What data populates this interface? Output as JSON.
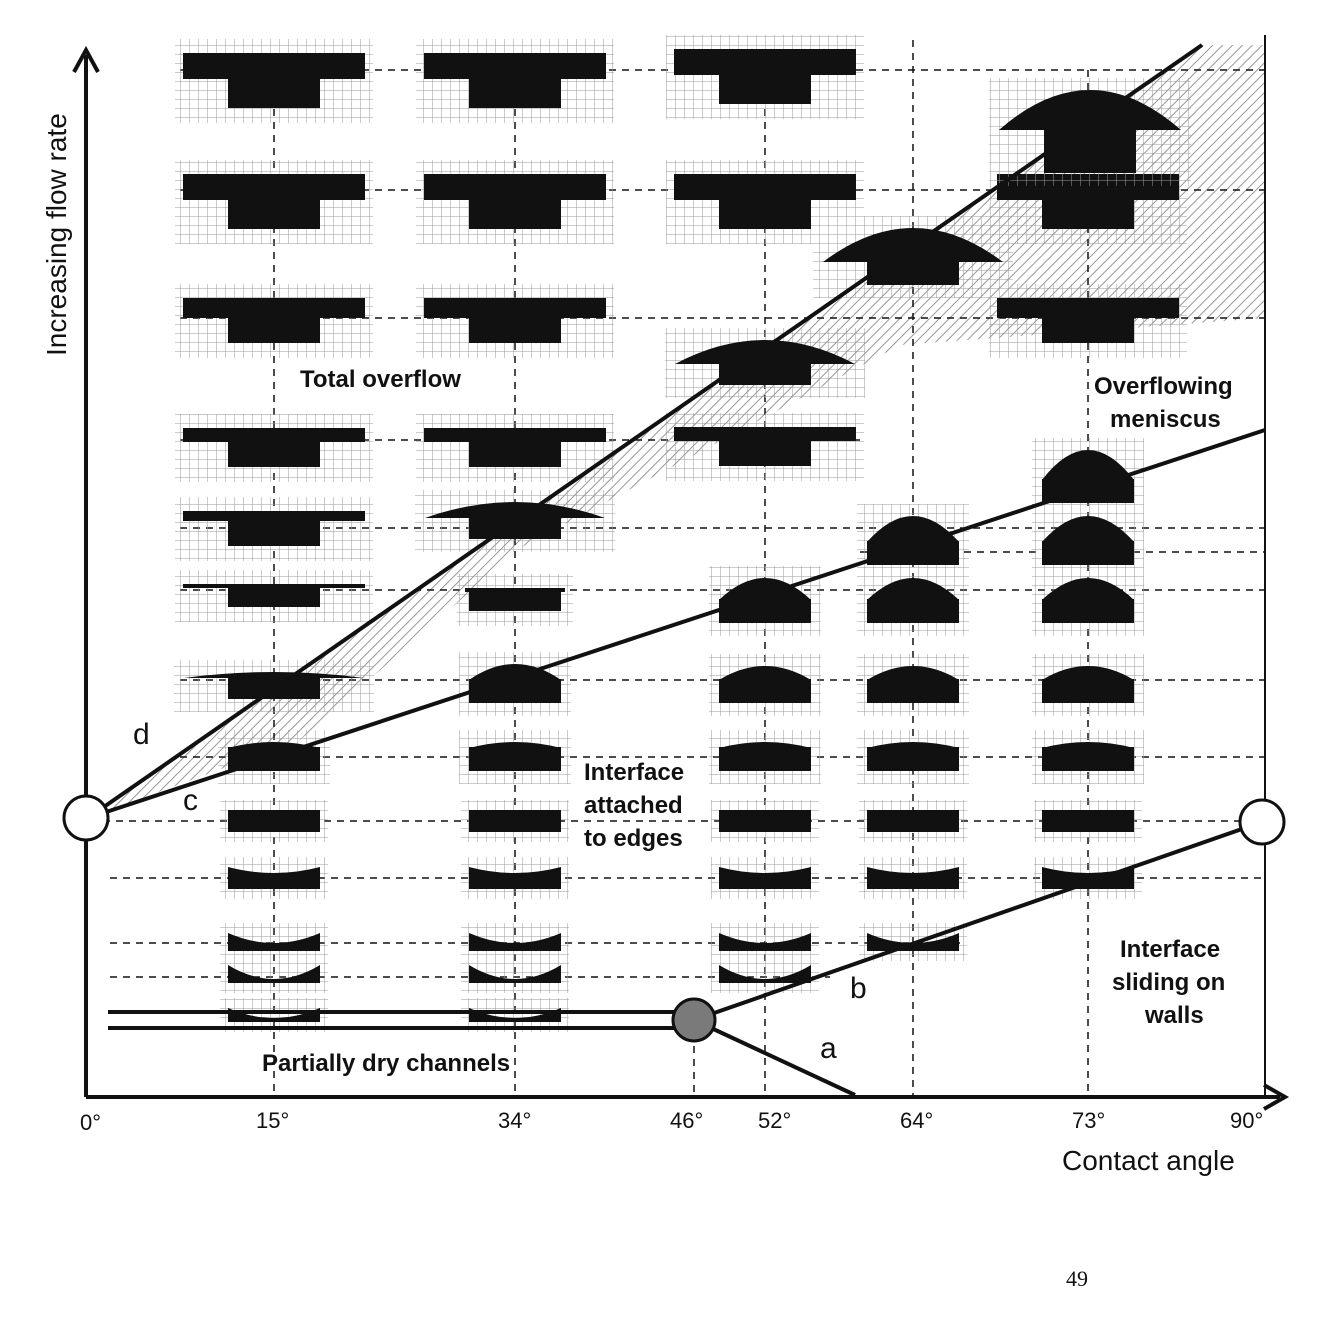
{
  "diagram": {
    "y_axis_label": "Increasing flow rate",
    "x_axis_label": "Contact angle",
    "x_ticks": [
      "0°",
      "15°",
      "34°",
      "46°",
      "52°",
      "64°",
      "73°",
      "90°"
    ],
    "regions": {
      "total_overflow": "Total overflow",
      "overflowing_meniscus_1": "Overflowing",
      "overflowing_meniscus_2": "meniscus",
      "attached_1": "Interface",
      "attached_2": "attached",
      "attached_3": "to edges",
      "sliding_1": "Interface",
      "sliding_2": "sliding on",
      "sliding_3": "walls",
      "partially_dry": "Partially dry channels"
    },
    "curves": {
      "a": "a",
      "b": "b",
      "c": "c",
      "d": "d"
    },
    "colors": {
      "ink": "#111111",
      "grid": "#9a9a9a",
      "hatch": "#8c8c8c",
      "triple_point": "#7a7a7a"
    }
  },
  "page": {
    "number": "49"
  }
}
